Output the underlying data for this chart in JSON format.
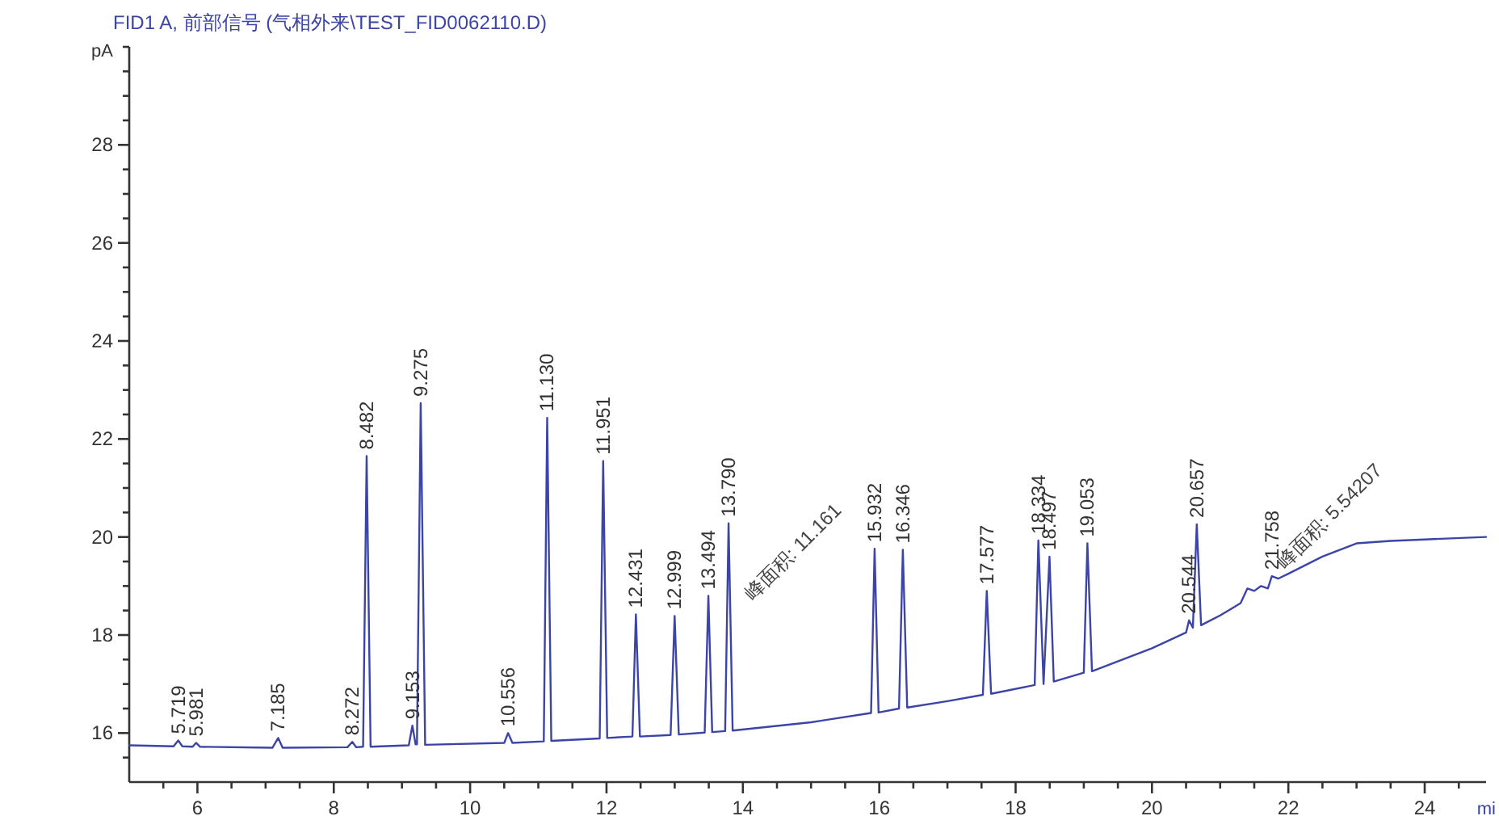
{
  "chart_data": {
    "type": "line",
    "title": "FID1 A, 前部信号 (气相外来\\TEST_FID0062110.D)",
    "xlabel": "mi",
    "ylabel": "pA",
    "xlim": [
      5,
      24.9
    ],
    "ylim": [
      15,
      30
    ],
    "xticks": [
      {
        "value": 5.5,
        "label": null
      },
      6,
      {
        "value": 6.5,
        "label": null
      },
      {
        "value": 7,
        "label": null
      },
      {
        "value": 7.5,
        "label": null
      },
      8,
      {
        "value": 8.5,
        "label": null
      },
      {
        "value": 9,
        "label": null
      },
      {
        "value": 9.5,
        "label": null
      },
      10,
      {
        "value": 10.5,
        "label": null
      },
      {
        "value": 11,
        "label": null
      },
      {
        "value": 11.5,
        "label": null
      },
      12,
      {
        "value": 12.5,
        "label": null
      },
      {
        "value": 13,
        "label": null
      },
      {
        "value": 13.5,
        "label": null
      },
      14,
      {
        "value": 14.5,
        "label": null
      },
      {
        "value": 15,
        "label": null
      },
      {
        "value": 15.5,
        "label": null
      },
      16,
      {
        "value": 16.5,
        "label": null
      },
      {
        "value": 17,
        "label": null
      },
      {
        "value": 17.5,
        "label": null
      },
      18,
      {
        "value": 18.5,
        "label": null
      },
      {
        "value": 19,
        "label": null
      },
      {
        "value": 19.5,
        "label": null
      },
      20,
      {
        "value": 20.5,
        "label": null
      },
      {
        "value": 21,
        "label": null
      },
      {
        "value": 21.5,
        "label": null
      },
      22,
      {
        "value": 22.5,
        "label": null
      },
      {
        "value": 23,
        "label": null
      },
      {
        "value": 23.5,
        "label": null
      },
      24,
      {
        "value": 24.5,
        "label": null
      }
    ],
    "yticks": [
      {
        "value": 15.5,
        "label": null
      },
      16,
      {
        "value": 16.5,
        "label": null
      },
      {
        "value": 17,
        "label": null
      },
      {
        "value": 17.5,
        "label": null
      },
      18,
      {
        "value": 18.5,
        "label": null
      },
      {
        "value": 19,
        "label": null
      },
      {
        "value": 19.5,
        "label": null
      },
      20,
      {
        "value": 20.5,
        "label": null
      },
      {
        "value": 21,
        "label": null
      },
      {
        "value": 21.5,
        "label": null
      },
      22,
      {
        "value": 22.5,
        "label": null
      },
      {
        "value": 23,
        "label": null
      },
      {
        "value": 23.5,
        "label": null
      },
      24,
      {
        "value": 24.5,
        "label": null
      },
      {
        "value": 25,
        "label": null
      },
      {
        "value": 25.5,
        "label": null
      },
      26,
      {
        "value": 26.5,
        "label": null
      },
      {
        "value": 27,
        "label": null
      },
      {
        "value": 27.5,
        "label": null
      },
      28,
      {
        "value": 28.5,
        "label": null
      },
      {
        "value": 29,
        "label": null
      },
      {
        "value": 29.5,
        "label": null
      },
      {
        "value": 30,
        "label": null
      }
    ],
    "grid": false,
    "marker": "none",
    "line_style": "solid",
    "series": [
      {
        "color": "#3c44a8",
        "x": [
          5.0,
          5.65,
          5.719,
          5.78,
          5.93,
          5.981,
          6.04,
          7.1,
          7.185,
          7.25,
          8.2,
          8.272,
          8.33,
          8.43,
          8.482,
          8.54,
          9.1,
          9.153,
          9.2,
          9.22,
          9.275,
          9.34,
          10.5,
          10.556,
          10.62,
          11.08,
          11.13,
          11.19,
          11.9,
          11.951,
          12.01,
          12.38,
          12.431,
          12.49,
          12.94,
          12.999,
          13.06,
          13.44,
          13.494,
          13.55,
          13.74,
          13.79,
          13.85,
          15.0,
          15.88,
          15.932,
          15.99,
          16.29,
          16.346,
          16.41,
          17.0,
          17.52,
          17.577,
          17.64,
          18.28,
          18.334,
          18.41,
          18.497,
          18.56,
          19.0,
          19.053,
          19.12,
          20.0,
          20.5,
          20.544,
          20.6,
          20.657,
          20.72,
          21.0,
          21.3,
          21.4,
          21.5,
          21.6,
          21.7,
          21.758,
          21.85,
          22.0,
          22.5,
          23.0,
          23.5,
          24.0,
          24.9
        ],
        "values": [
          15.75,
          15.73,
          15.85,
          15.73,
          15.72,
          15.8,
          15.72,
          15.7,
          15.9,
          15.7,
          15.71,
          15.82,
          15.71,
          15.72,
          21.65,
          15.72,
          15.75,
          16.15,
          15.77,
          15.77,
          22.73,
          15.76,
          15.8,
          16.0,
          15.8,
          15.83,
          22.43,
          15.84,
          15.89,
          21.55,
          15.9,
          15.93,
          18.42,
          15.93,
          15.96,
          18.39,
          15.97,
          16.01,
          18.8,
          16.02,
          16.04,
          20.28,
          16.05,
          16.22,
          16.41,
          19.76,
          16.42,
          16.5,
          19.74,
          16.52,
          16.65,
          16.78,
          18.9,
          16.8,
          16.98,
          19.93,
          17.0,
          19.6,
          17.05,
          17.23,
          19.87,
          17.26,
          17.73,
          18.05,
          18.3,
          18.15,
          20.26,
          18.2,
          18.4,
          18.65,
          18.95,
          18.9,
          19.0,
          18.95,
          19.2,
          19.15,
          19.25,
          19.6,
          19.87,
          19.92,
          19.95,
          20.0
        ]
      }
    ],
    "annotations": [
      {
        "text": "5.719",
        "x": 5.719,
        "y": 15.85
      },
      {
        "text": "5.981",
        "x": 5.981,
        "y": 15.8
      },
      {
        "text": "7.185",
        "x": 7.185,
        "y": 15.9
      },
      {
        "text": "8.272",
        "x": 8.272,
        "y": 15.82
      },
      {
        "text": "8.482",
        "x": 8.482,
        "y": 21.65
      },
      {
        "text": "9.153",
        "x": 9.153,
        "y": 16.15
      },
      {
        "text": "9.275",
        "x": 9.275,
        "y": 22.73
      },
      {
        "text": "10.556",
        "x": 10.556,
        "y": 16.0
      },
      {
        "text": "11.130",
        "x": 11.13,
        "y": 22.43
      },
      {
        "text": "11.951",
        "x": 11.951,
        "y": 21.55
      },
      {
        "text": "12.431",
        "x": 12.431,
        "y": 18.42
      },
      {
        "text": "12.999",
        "x": 12.999,
        "y": 18.39
      },
      {
        "text": "13.494",
        "x": 13.494,
        "y": 18.8
      },
      {
        "text": "13.790",
        "x": 13.79,
        "y": 20.28
      },
      {
        "text": "15.932",
        "x": 15.932,
        "y": 19.76
      },
      {
        "text": "16.346",
        "x": 16.346,
        "y": 19.74
      },
      {
        "text": "17.577",
        "x": 17.577,
        "y": 18.9
      },
      {
        "text": "18.334",
        "x": 18.334,
        "y": 19.93
      },
      {
        "text": "18.497",
        "x": 18.497,
        "y": 19.6
      },
      {
        "text": "19.053",
        "x": 19.053,
        "y": 19.87
      },
      {
        "text": "20.544",
        "x": 20.544,
        "y": 18.3
      },
      {
        "text": "20.657",
        "x": 20.657,
        "y": 20.26
      },
      {
        "text": "21.758",
        "x": 21.758,
        "y": 19.2
      },
      "峰面积: 11.161",
      {
        "text": "峰面积: 5.54207",
        "x": 21.9,
        "y": 19.2
      }
    ]
  }
}
